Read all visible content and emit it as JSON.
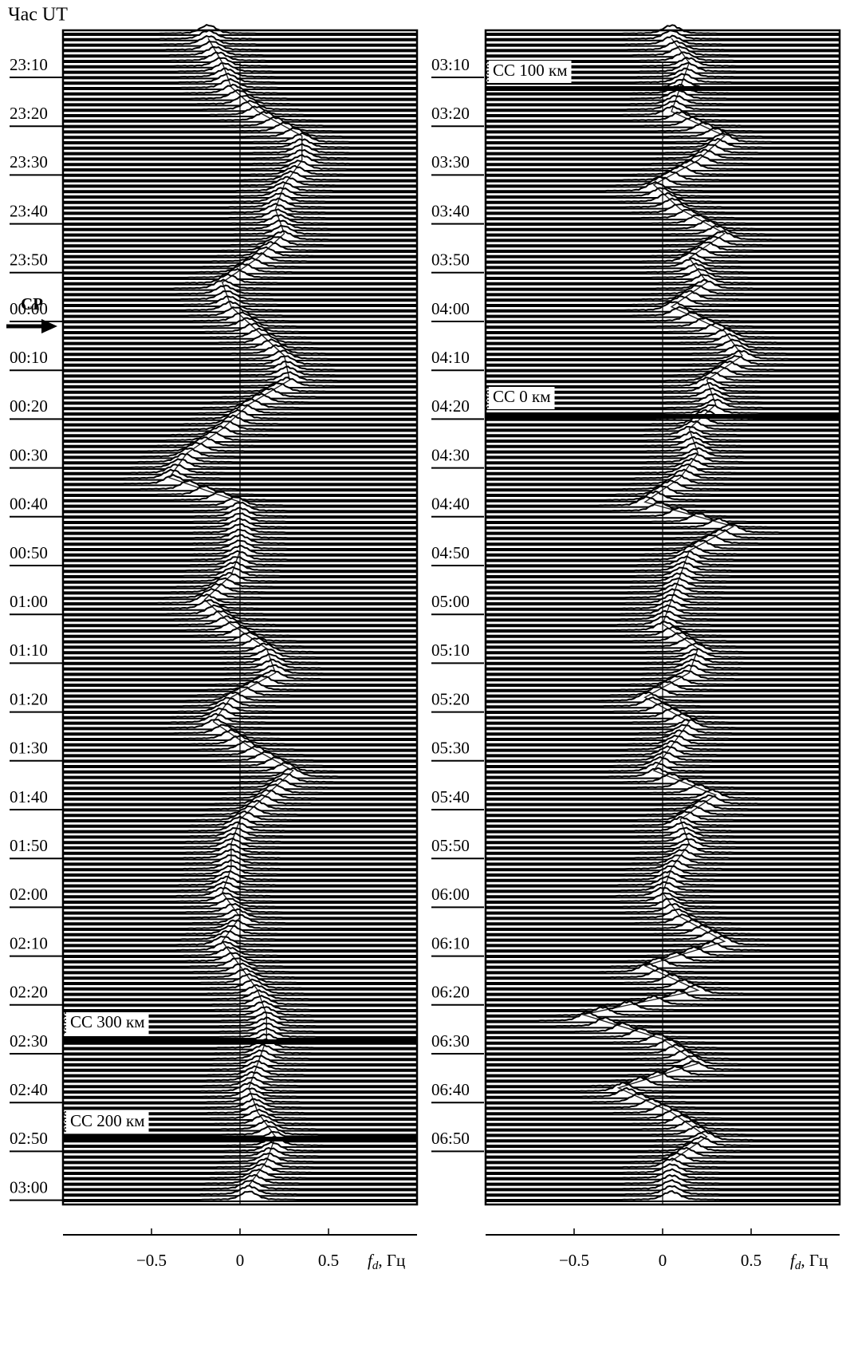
{
  "chart_data": [
    {
      "type": "stack",
      "title": "Час UT",
      "time_labels": [
        "23:10",
        "23:20",
        "23:30",
        "23:40",
        "23:50",
        "00:00",
        "00:10",
        "00:20",
        "00:30",
        "00:40",
        "00:50",
        "01:00",
        "01:10",
        "01:20",
        "01:30",
        "01:40",
        "01:50",
        "02:00",
        "02:10",
        "02:20",
        "02:30",
        "02:40",
        "02:50",
        "03:00"
      ],
      "values": [
        -0.18,
        -0.1,
        -0.05,
        0.1,
        0.35,
        0.35,
        0.25,
        0.2,
        0.25,
        0.1,
        -0.1,
        -0.05,
        0.1,
        0.25,
        0.28,
        0.05,
        -0.1,
        -0.3,
        -0.4,
        0,
        0,
        0,
        -0.05,
        -0.2,
        -0.05,
        0.15,
        0.2,
        -0.05,
        -0.15,
        0.05,
        0.3,
        0.15,
        0,
        -0.05,
        -0.05,
        -0.1,
        0,
        -0.1,
        0,
        0.1,
        0.15,
        0.15,
        0.1,
        0.05,
        0.1,
        0.2,
        0.15,
        0.05
      ],
      "color": "#000000",
      "xlim": [
        -1,
        1
      ],
      "xticks": [
        {
          "value": -0.5,
          "label": "−0.5"
        },
        0,
        0.5
      ],
      "xlabel": [
        "f",
        "d",
        ", Гц"
      ],
      "zero_line": true,
      "annotations": [
        "СР",
        "СС 300 км",
        "СС 200 км"
      ]
    },
    {
      "type": "stack",
      "time_labels": [
        "03:10",
        "03:20",
        "03:30",
        "03:40",
        "03:50",
        "04:00",
        "04:10",
        "04:20",
        "04:30",
        "04:40",
        "04:50",
        "05:00",
        "05:10",
        "05:20",
        "05:30",
        "05:40",
        "05:50",
        "06:00",
        "06:10",
        "06:20",
        "06:30",
        "06:40",
        "06:50"
      ],
      "values": [
        0.05,
        0.15,
        0.1,
        0.05,
        0.35,
        0.2,
        -0.05,
        0.1,
        0.35,
        0.15,
        0.25,
        0.05,
        0.35,
        0.45,
        0.25,
        0.3,
        0.15,
        0.2,
        0.1,
        -0.1,
        0.4,
        0.15,
        0.1,
        0.05,
        0,
        0.2,
        0.15,
        -0.1,
        0.15,
        0.05,
        -0.05,
        0.3,
        0.1,
        0.15,
        0.05,
        0,
        0.1,
        0.35,
        -0.1,
        0.2,
        -0.45,
        0,
        0.2,
        -0.25,
        0.05,
        0.25,
        0.05
      ],
      "color": "#000000",
      "xlim": [
        -1,
        1
      ],
      "xticks": [
        {
          "value": -0.5,
          "label": "−0.5"
        },
        0,
        0.5
      ],
      "xlabel": [
        "f",
        "d",
        ", Гц"
      ],
      "zero_line": true,
      "annotations": [
        "СС 100 км",
        "СС 0 км"
      ]
    }
  ]
}
